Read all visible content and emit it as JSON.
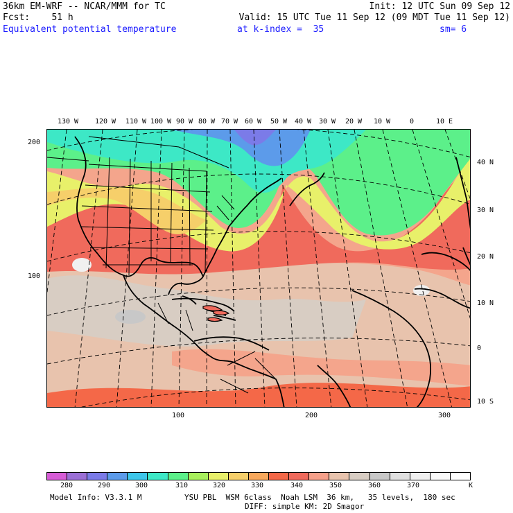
{
  "header": {
    "model_line": "36km EM-WRF -- NCAR/MMM for TC",
    "init_line": "Init: 12 UTC Sun 09 Sep 12",
    "fcst_line": "Fcst:    51 h",
    "valid_line": "Valid: 15 UTC Tue 11 Sep 12 (09 MDT Tue 11 Sep 12)",
    "field_name": "Equivalent potential temperature",
    "level_text": "at k-index =  35",
    "smooth_text": "sm= 6"
  },
  "lon_labels": [
    "130 W",
    "120 W",
    "110 W",
    "100 W",
    "90 W",
    "80 W",
    "70 W",
    "60 W",
    "50 W",
    "40 W",
    "30 W",
    "20 W",
    "10 W",
    "0",
    "10 E"
  ],
  "lat_labels": [
    "40 N",
    "30 N",
    "20 N",
    "10 N",
    "0",
    "10 S"
  ],
  "grid_y_labels": [
    "200",
    "100"
  ],
  "grid_x_labels": [
    "100",
    "200",
    "300"
  ],
  "colorbar": {
    "colors": [
      "#d65cd6",
      "#9b6fd6",
      "#7b7be8",
      "#5c9bea",
      "#3dc6ea",
      "#3de8c6",
      "#5cf08a",
      "#a8f05c",
      "#e8f06a",
      "#f6cf6a",
      "#f8a85c",
      "#f46848",
      "#f06a5c",
      "#f6a08a",
      "#e8c3ad",
      "#d8cdc3",
      "#c8c8c8",
      "#e0e0e0",
      "#f0f0f0",
      "#fafafa",
      "#ffffff"
    ],
    "labels": [
      "280",
      "290",
      "300",
      "310",
      "320",
      "330",
      "340",
      "350",
      "360",
      "370",
      "K"
    ]
  },
  "footer": {
    "model_info": "Model Info: V3.3.1 M",
    "physics": "YSU PBL  WSM 6class  Noah LSM  36 km,   35 levels,  180 sec",
    "diffusion": "DIFF: simple KM: 2D Smagor"
  }
}
